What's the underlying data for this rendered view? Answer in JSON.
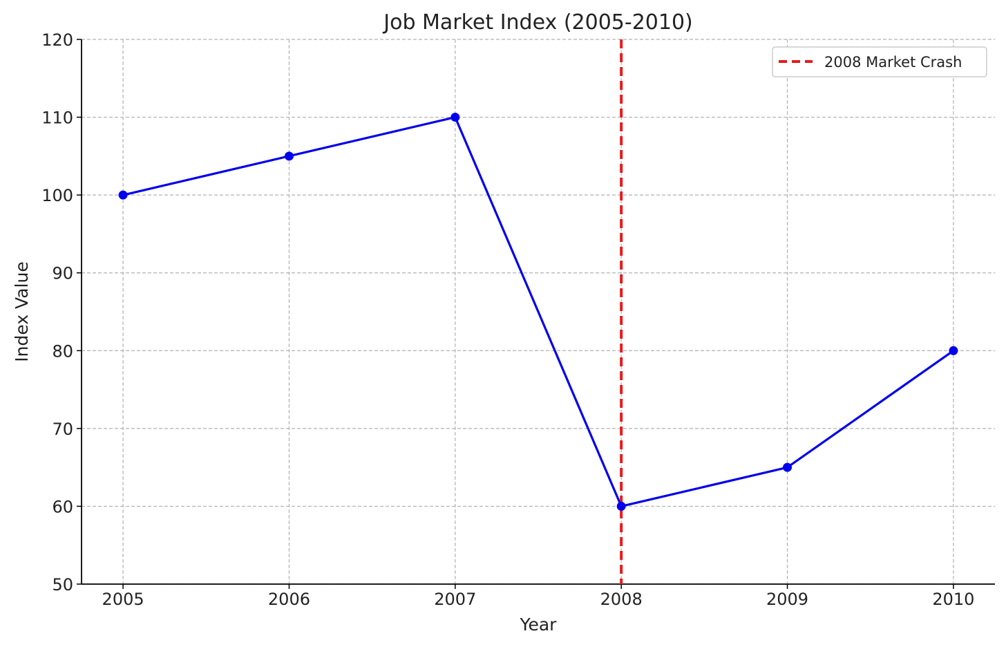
{
  "chart_data": {
    "type": "line",
    "title": "Job Market Index (2005-2010)",
    "xlabel": "Year",
    "ylabel": "Index Value",
    "x": [
      2005,
      2006,
      2007,
      2008,
      2009,
      2010
    ],
    "series": [
      {
        "values": [
          100,
          105,
          110,
          60,
          65,
          80
        ],
        "color": "#0000ee",
        "marker": "circle"
      }
    ],
    "xticks": [
      "2005",
      "2006",
      "2007",
      "2008",
      "2009",
      "2010"
    ],
    "yticks": [
      "50",
      "60",
      "70",
      "80",
      "90",
      "100",
      "110",
      "120"
    ],
    "xlim": [
      2004.75,
      2010.25
    ],
    "ylim": [
      50,
      120
    ],
    "grid": true,
    "annotations": [
      {
        "type": "vline",
        "x": 2008,
        "color": "#e8191a",
        "style": "dashed",
        "label": "2008 Market Crash"
      }
    ],
    "legend": {
      "position": "top-right",
      "entries": [
        "2008 Market Crash"
      ]
    }
  }
}
